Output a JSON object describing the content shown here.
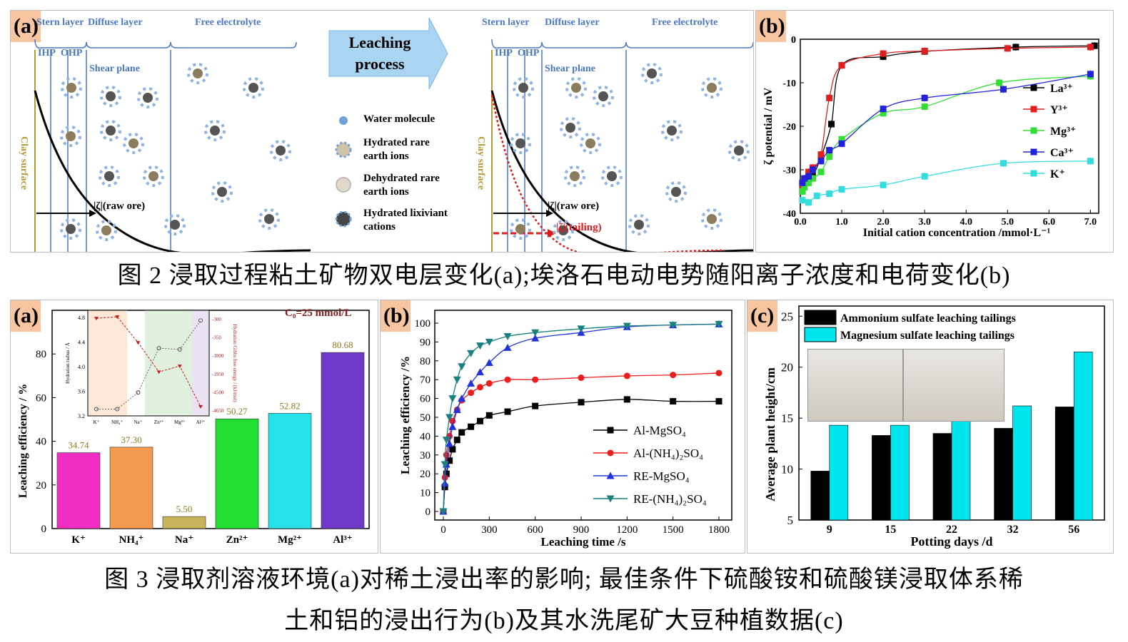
{
  "fig2": {
    "a": {
      "tag": "(a)",
      "left_labels": {
        "stern": "Stern layer",
        "diffuse": "Diffuse layer",
        "free": "Free electrolyte",
        "ihp": "IHP",
        "ohp": "OHP",
        "shear": "Shear plane",
        "clay": "Clay surface",
        "zeta": "|ζ|(raw ore)"
      },
      "arrow": {
        "line1": "Leaching",
        "line2": "process"
      },
      "legend": {
        "water": "Water molecule",
        "hydrated_re": "Hydrated rare earth ions",
        "dehydrated_re": "Dehydrated rare earth ions",
        "hydrated_lix": "Hydrated lixiviant cations"
      },
      "right_labels": {
        "stern": "Stern layer",
        "diffuse": "Diffuse layer",
        "free": "Free electrolyte",
        "ihp": "IHP",
        "ohp": "OHP",
        "shear": "Shear plane",
        "clay": "Clay surface",
        "zeta_raw": "|ζ|(raw ore)",
        "zeta_tail": "|ζ|(tailing)"
      }
    },
    "b": {
      "tag": "(b)",
      "chart_data": {
        "type": "line",
        "xlabel": "Initial cation concentration /mmol·L⁻¹",
        "ylabel": "ζ potential / mV",
        "xlim": [
          0,
          7.2
        ],
        "ylim": [
          -40,
          0
        ],
        "xticks": [
          "0.0",
          "1.0",
          "2.0",
          "3.0",
          "4.0",
          "5.0",
          "6.0",
          "7.0"
        ],
        "yticks": [
          "0",
          "-10",
          "-20",
          "-30",
          "-40"
        ],
        "legend": "right",
        "series": [
          {
            "name": "La³⁺",
            "color": "#000000",
            "marker": "square",
            "x": [
              0.05,
              0.1,
              0.2,
              0.3,
              0.5,
              0.75,
              1.0,
              2.0,
              3.0,
              5.2,
              7.1
            ],
            "y": [
              -35,
              -33,
              -32,
              -31.5,
              -27,
              -19.5,
              -6,
              -4,
              -2.8,
              -1.8,
              -1.5
            ]
          },
          {
            "name": "Y³⁺",
            "color": "#e02020",
            "marker": "square",
            "x": [
              0.05,
              0.1,
              0.2,
              0.3,
              0.5,
              0.7,
              1.0,
              2.0,
              3.0,
              5.0,
              7.0
            ],
            "y": [
              -33.5,
              -32,
              -30.5,
              -29.5,
              -26.5,
              -13.5,
              -6,
              -3.3,
              -2.7,
              -2.1,
              -1.8
            ]
          },
          {
            "name": "Mg³⁺",
            "color": "#33dd33",
            "marker": "square",
            "x": [
              0.05,
              0.1,
              0.2,
              0.3,
              0.5,
              0.7,
              1.0,
              2.0,
              3.0,
              4.8,
              7.0
            ],
            "y": [
              -35,
              -34,
              -33,
              -32,
              -30.5,
              -27,
              -23,
              -17,
              -15.5,
              -10,
              -8.5
            ]
          },
          {
            "name": "Ca³⁺",
            "color": "#2222dd",
            "marker": "square",
            "x": [
              0.05,
              0.1,
              0.2,
              0.3,
              0.5,
              0.7,
              1.0,
              2.0,
              3.0,
              4.9,
              7.0
            ],
            "y": [
              -33,
              -32,
              -31.5,
              -30,
              -28,
              -25.5,
              -24,
              -16,
              -13.5,
              -11.5,
              -8
            ]
          },
          {
            "name": "K⁺",
            "color": "#33dddd",
            "marker": "square",
            "x": [
              0.05,
              0.2,
              0.4,
              0.7,
              1.0,
              2.0,
              3.0,
              4.9,
              7.0
            ],
            "y": [
              -37,
              -37.5,
              -36,
              -35.5,
              -34.5,
              -33.5,
              -31.5,
              -28.5,
              -28
            ]
          }
        ]
      }
    },
    "caption": "图 2 浸取过程粘土矿物双电层变化(a);埃洛石电动电势随阳离子浓度和电荷变化(b)"
  },
  "fig3": {
    "a": {
      "tag": "(a)",
      "concentration": "C₀=25 mmol/L",
      "chart_data": {
        "type": "bar",
        "ylabel": "Leaching efficiency / %",
        "ylim": [
          0,
          100
        ],
        "yticks": [
          "0",
          "20",
          "40",
          "60",
          "80"
        ],
        "categories": [
          "K⁺",
          "NH₄⁺",
          "Na⁺",
          "Zn²⁺",
          "Mg²⁺",
          "Al³⁺"
        ],
        "values": [
          34.74,
          37.3,
          5.5,
          50.27,
          52.82,
          80.68
        ],
        "labels": [
          "34.74",
          "37.30",
          "5.50",
          "50.27",
          "52.82",
          "80.68"
        ],
        "colors": [
          "#ee2ec0",
          "#f29a50",
          "#c8b45a",
          "#22e033",
          "#25e2e8",
          "#6f38c9"
        ],
        "inset": {
          "left_ylabel": "Hydration radius / Å",
          "right_ylabel": "Hydration Gibbs free energy / (kJ/mol)",
          "left_yticks": [
            "3.2",
            "3.6",
            "4.0",
            "4.4",
            "4.8"
          ],
          "right_yticks": [
            "-300",
            "-350",
            "-1800",
            "-1950",
            "-4500",
            "-4650"
          ],
          "radius": [
            3.31,
            3.31,
            3.58,
            4.3,
            4.28,
            4.75
          ],
          "energy_rel": [
            0.95,
            0.97,
            0.62,
            0.22,
            0.3,
            -0.25
          ]
        }
      }
    },
    "b": {
      "tag": "(b)",
      "chart_data": {
        "type": "line",
        "xlabel": "Leaching time /s",
        "ylabel": "Leaching efficiency /%",
        "xlim": [
          0,
          1800
        ],
        "ylim": [
          0,
          100
        ],
        "xticks": [
          "0",
          "300",
          "600",
          "900",
          "1200",
          "1500",
          "1800"
        ],
        "yticks": [
          "0",
          "10",
          "20",
          "30",
          "40",
          "50",
          "60",
          "70",
          "80",
          "90",
          "100"
        ],
        "legend": "bottom-right",
        "series": [
          {
            "name": "Al-MgSO₄",
            "color": "#000000",
            "marker": "square",
            "x": [
              0,
              10,
              20,
              40,
              60,
              90,
              120,
              180,
              240,
              300,
              420,
              600,
              900,
              1200,
              1500,
              1800
            ],
            "y": [
              0,
              13,
              20,
              27,
              33,
              38,
              42,
              45,
              48,
              51,
              53,
              56,
              58,
              59.5,
              58.5,
              58.5
            ]
          },
          {
            "name": "Al-(NH₄)₂SO₄",
            "color": "#ee1c1c",
            "marker": "circle",
            "x": [
              0,
              10,
              20,
              40,
              60,
              90,
              120,
              180,
              240,
              300,
              420,
              600,
              900,
              1200,
              1500,
              1800
            ],
            "y": [
              0,
              18,
              30,
              40,
              48,
              54,
              59,
              63,
              66,
              68,
              70,
              70,
              71,
              72,
              72.5,
              73.5
            ]
          },
          {
            "name": "RE-MgSO₄",
            "color": "#2233dd",
            "marker": "triangle",
            "x": [
              0,
              10,
              20,
              40,
              60,
              90,
              120,
              180,
              240,
              300,
              420,
              600,
              900,
              1200,
              1500,
              1800
            ],
            "y": [
              0,
              15,
              25,
              36,
              45,
              54,
              60,
              68,
              74,
              79,
              87,
              92,
              95,
              98,
              99,
              99.5
            ]
          },
          {
            "name": "RE-(NH₄)₂SO₄",
            "color": "#1a8080",
            "marker": "triangle-down",
            "x": [
              0,
              10,
              20,
              40,
              60,
              90,
              120,
              180,
              240,
              300,
              420,
              600,
              900,
              1200,
              1500,
              1800
            ],
            "y": [
              0,
              25,
              38,
              50,
              60,
              70,
              77,
              84,
              88,
              90,
              93,
              95,
              97,
              98.5,
              99,
              99.5
            ]
          }
        ]
      }
    },
    "c": {
      "tag": "(c)",
      "chart_data": {
        "type": "bar",
        "xlabel": "Potting days /d",
        "ylabel": "Average plant height/cm",
        "ylim": [
          5,
          26
        ],
        "yticks": [
          "5",
          "10",
          "15",
          "20",
          "25"
        ],
        "categories": [
          "9",
          "15",
          "22",
          "32",
          "56"
        ],
        "series": [
          {
            "name": "Ammonium sulfate leaching tailings",
            "color": "#000000",
            "values": [
              9.8,
              13.3,
              13.5,
              14.0,
              16.1
            ]
          },
          {
            "name": "Magnesium sulfate leaching tailings",
            "color": "#00e5ee",
            "values": [
              14.3,
              14.3,
              14.7,
              16.2,
              21.5
            ]
          }
        ]
      }
    },
    "caption_line1": "图 3 浸取剂溶液环境(a)对稀土浸出率的影响; 最佳条件下硫酸铵和硫酸镁浸取体系稀",
    "caption_line2": "土和铝的浸出行为(b)及其水洗尾矿大豆种植数据(c)"
  }
}
